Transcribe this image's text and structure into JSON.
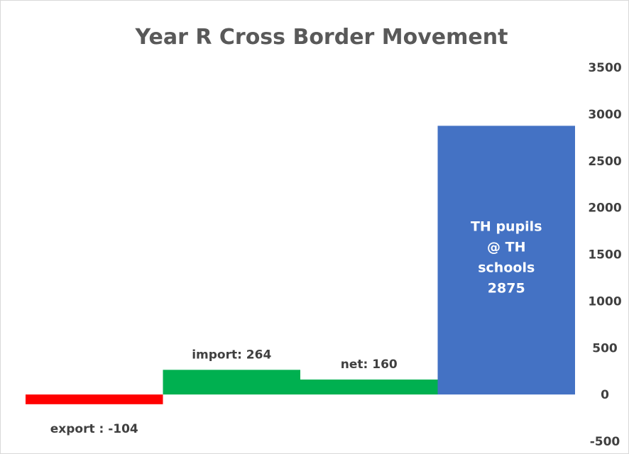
{
  "chart_data": {
    "type": "bar",
    "title": "Year R Cross Border Movement",
    "categories": [
      "export",
      "import",
      "net",
      "TH pupils @ TH schools"
    ],
    "values": [
      -104,
      264,
      160,
      2875
    ],
    "data_labels": [
      [
        "export : -104"
      ],
      [
        "import: 264"
      ],
      [
        "net: 160"
      ],
      [
        "TH pupils",
        "@ TH",
        "schools",
        "2875"
      ]
    ],
    "label_position": [
      "below",
      "above",
      "above",
      "inside"
    ],
    "colors": [
      "#ff0000",
      "#00b050",
      "#00b050",
      "#4472c4"
    ],
    "ylim": [
      -500,
      3500
    ],
    "yticks": [
      -500,
      0,
      500,
      1000,
      1500,
      2000,
      2500,
      3000,
      3500
    ],
    "y_axis_side": "right",
    "grid": false,
    "legend": "none"
  }
}
